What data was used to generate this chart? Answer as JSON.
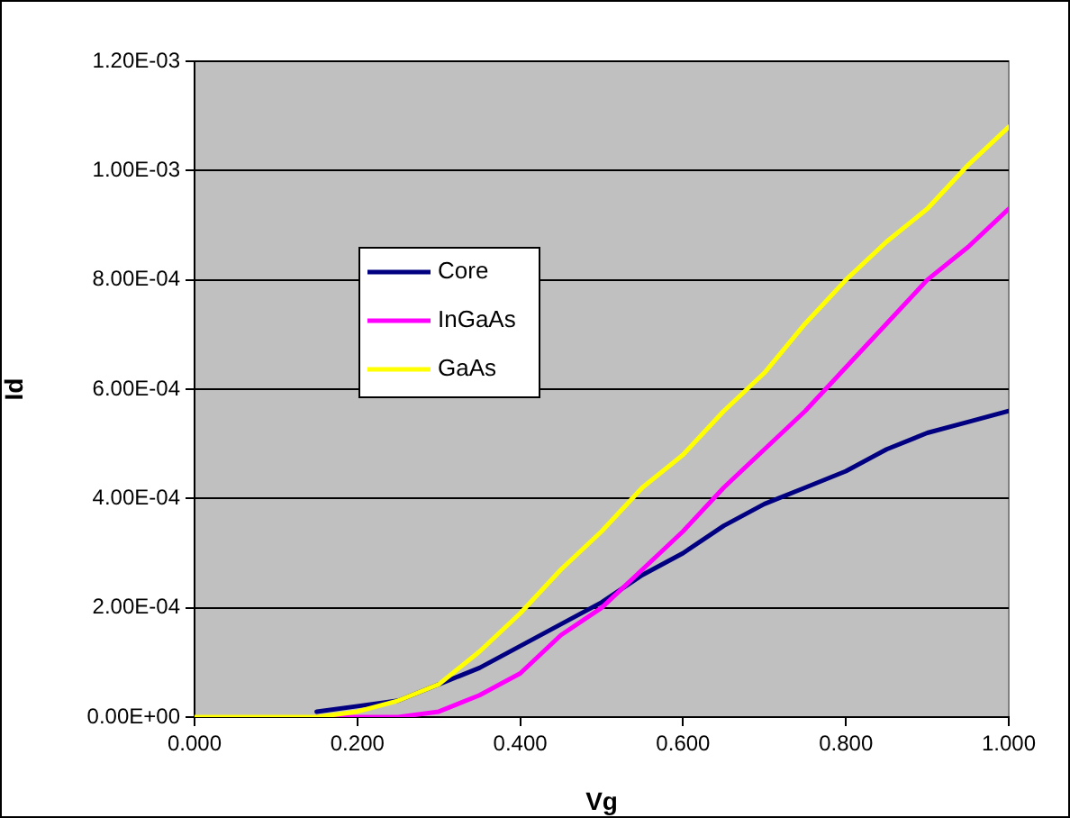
{
  "chart_data": {
    "type": "line",
    "xlabel": "Vg",
    "ylabel": "Id",
    "x": [
      0,
      0.05,
      0.1,
      0.15,
      0.2,
      0.25,
      0.3,
      0.35,
      0.4,
      0.45,
      0.5,
      0.55,
      0.6,
      0.65,
      0.7,
      0.75,
      0.8,
      0.85,
      0.9,
      0.95,
      1.0
    ],
    "series": [
      {
        "name": "Core",
        "color": "#000080",
        "values": [
          null,
          null,
          null,
          1e-05,
          2e-05,
          3e-05,
          6e-05,
          9e-05,
          0.00013,
          0.00017,
          0.00021,
          0.00026,
          0.0003,
          0.00035,
          0.00039,
          0.00042,
          0.00045,
          0.00049,
          0.00052,
          0.00054,
          0.00056
        ]
      },
      {
        "name": "InGaAs",
        "color": "#ff00ff",
        "values": [
          null,
          null,
          null,
          0,
          0,
          0,
          1e-05,
          4e-05,
          8e-05,
          0.00015,
          0.0002,
          0.00027,
          0.00034,
          0.00042,
          0.00049,
          0.00056,
          0.00064,
          0.00072,
          0.0008,
          0.00086,
          0.00093
        ]
      },
      {
        "name": "GaAs",
        "color": "#ffff00",
        "values": [
          0,
          0,
          0,
          0,
          1e-05,
          3e-05,
          6e-05,
          0.00012,
          0.00019,
          0.00027,
          0.00034,
          0.00042,
          0.00048,
          0.00056,
          0.00063,
          0.00072,
          0.0008,
          0.00087,
          0.00093,
          0.00101,
          0.00108
        ]
      }
    ],
    "xlim": [
      0,
      1
    ],
    "xticks": [
      {
        "value": 0,
        "label": "0.000"
      },
      {
        "value": 0.2,
        "label": "0.200"
      },
      {
        "value": 0.4,
        "label": "0.400"
      },
      {
        "value": 0.6,
        "label": "0.600"
      },
      {
        "value": 0.8,
        "label": "0.800"
      },
      {
        "value": 1,
        "label": "1.000"
      }
    ],
    "ylim": [
      0,
      0.0012
    ],
    "yticks": [
      {
        "value": 0,
        "label": "0.00E+00"
      },
      {
        "value": 0.0002,
        "label": "2.00E-04"
      },
      {
        "value": 0.0004,
        "label": "4.00E-04"
      },
      {
        "value": 0.0006,
        "label": "6.00E-04"
      },
      {
        "value": 0.0008,
        "label": "8.00E-04"
      },
      {
        "value": 0.001,
        "label": "1.00E-03"
      },
      {
        "value": 0.0012,
        "label": "1.20E-03"
      }
    ],
    "grid": "y",
    "legend": "center",
    "marker": "none",
    "line_style": "solid"
  }
}
